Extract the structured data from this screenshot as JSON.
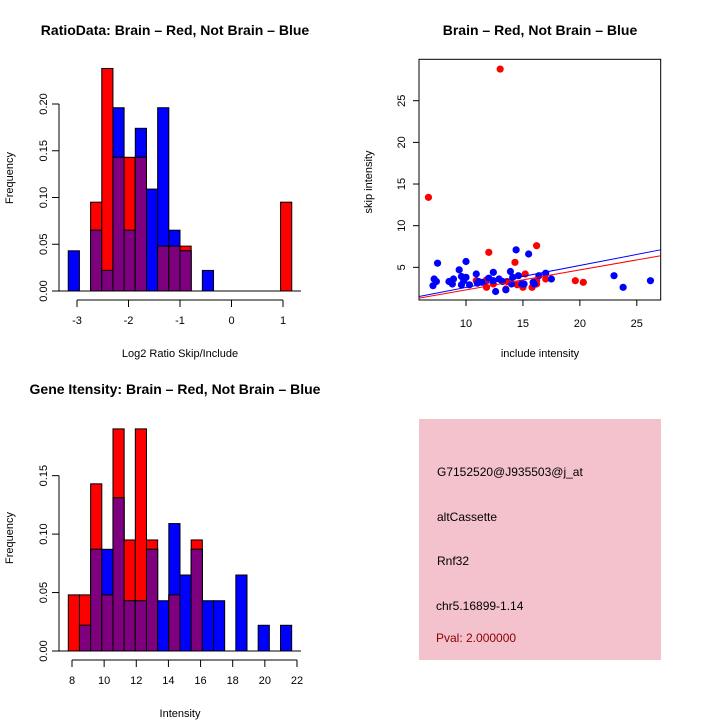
{
  "colors": {
    "brain": "#ff0000",
    "not_brain": "#0000ff",
    "overlap": "#7f007f",
    "panel_bg": "#f4c2cc",
    "pval": "#8b0000"
  },
  "chart_data": [
    {
      "type": "bar",
      "title": "RatioData: Brain – Red, Not Brain – Blue",
      "xlabel": "Log2 Ratio Skip/Include",
      "ylabel": "Frequency",
      "bin_start": -3.17,
      "bin_width": 0.217,
      "xlim": [
        -3,
        1
      ],
      "ylim": [
        0,
        0.24
      ],
      "xticks": [
        "-3",
        "-2",
        "-1",
        "0",
        "1"
      ],
      "xtick_values": [
        -3,
        -2,
        -1,
        0,
        1
      ],
      "yticks": [
        "0.00",
        "0.05",
        "0.10",
        "0.15",
        "0.20"
      ],
      "ytick_values": [
        0,
        0.05,
        0.1,
        0.15,
        0.2
      ],
      "series": [
        {
          "name": "Not Brain",
          "color": "blue",
          "values": [
            0.043,
            0,
            0.065,
            0.022,
            0.196,
            0.065,
            0.174,
            0.109,
            0.196,
            0.065,
            0.043,
            0,
            0.022,
            0,
            0,
            0,
            0,
            0,
            0,
            0
          ]
        },
        {
          "name": "Brain",
          "color": "red",
          "values": [
            0,
            0,
            0.095,
            0.238,
            0.143,
            0.143,
            0.143,
            0,
            0.048,
            0.048,
            0.048,
            0,
            0,
            0,
            0,
            0,
            0,
            0,
            0,
            0.095
          ]
        }
      ]
    },
    {
      "type": "scatter",
      "title": "Brain – Red, Not Brain – Blue",
      "xlabel": "include intensity",
      "ylabel": "skip intensity",
      "xlim": [
        5.87,
        27.1
      ],
      "ylim": [
        1.08,
        29.97
      ],
      "xticks": [
        "10",
        "15",
        "20",
        "25"
      ],
      "xtick_values": [
        10,
        15,
        20,
        25
      ],
      "yticks": [
        "5",
        "10",
        "15",
        "20",
        "25"
      ],
      "ytick_values": [
        5,
        10,
        15,
        20,
        25
      ],
      "series": [
        {
          "name": "Brain",
          "color": "red",
          "fit": {
            "slope": 0.24,
            "intercept": -0.11
          },
          "points": [
            [
              6.7,
              13.4
            ],
            [
              13,
              28.8
            ],
            [
              12,
              6.8
            ],
            [
              16.2,
              7.6
            ],
            [
              14.3,
              5.6
            ],
            [
              15.2,
              4.2
            ],
            [
              10.9,
              3.4
            ],
            [
              11.8,
              2.6
            ],
            [
              12.4,
              3.0
            ],
            [
              13.5,
              2.4
            ],
            [
              14.5,
              2.9
            ],
            [
              15,
              2.6
            ],
            [
              15.8,
              2.6
            ],
            [
              16.2,
              3.0
            ],
            [
              17,
              3.6
            ],
            [
              19.6,
              3.4
            ],
            [
              20.3,
              3.2
            ],
            [
              11.8,
              3.5
            ],
            [
              13.6,
              3.3
            ],
            [
              16.2,
              3.4
            ],
            [
              14.9,
              3.1
            ]
          ]
        },
        {
          "name": "Not Brain",
          "color": "blue",
          "fit": {
            "slope": 0.264,
            "intercept": -0.05
          },
          "points": [
            [
              7.1,
              2.8
            ],
            [
              7.2,
              3.6
            ],
            [
              7.4,
              3.3
            ],
            [
              7.5,
              5.5
            ],
            [
              8.5,
              3.3
            ],
            [
              8.8,
              3.0
            ],
            [
              8.9,
              3.6
            ],
            [
              9.4,
              4.7
            ],
            [
              9.6,
              2.9
            ],
            [
              9.6,
              3.9
            ],
            [
              9.8,
              3.4
            ],
            [
              10,
              5.7
            ],
            [
              10,
              3.8
            ],
            [
              10.3,
              2.9
            ],
            [
              10.9,
              4.2
            ],
            [
              11.1,
              3.3
            ],
            [
              11.4,
              3.2
            ],
            [
              12,
              3.7
            ],
            [
              12.4,
              4.4
            ],
            [
              12.4,
              3.4
            ],
            [
              12.6,
              2.1
            ],
            [
              12.9,
              3.6
            ],
            [
              13.5,
              2.3
            ],
            [
              13.9,
              4.5
            ],
            [
              14,
              3.0
            ],
            [
              14.1,
              3.8
            ],
            [
              14.4,
              7.1
            ],
            [
              14.6,
              4.0
            ],
            [
              14.9,
              3.0
            ],
            [
              15.5,
              6.6
            ],
            [
              15.9,
              3.2
            ],
            [
              16,
              3.0
            ],
            [
              16.4,
              4.0
            ],
            [
              17,
              4.3
            ],
            [
              17.5,
              3.6
            ],
            [
              23,
              4.0
            ],
            [
              23.8,
              2.6
            ],
            [
              26.2,
              3.4
            ],
            [
              13.2,
              3.3
            ],
            [
              11,
              3.1
            ],
            [
              15.1,
              3.0
            ]
          ]
        }
      ]
    },
    {
      "type": "bar",
      "title": "Gene Itensity: Brain – Red, Not Brain – Blue",
      "xlabel": "Intensity",
      "ylabel": "Frequency",
      "bin_start": 7.77,
      "bin_width": 0.695,
      "xlim": [
        8,
        22
      ],
      "ylim": [
        0,
        0.19
      ],
      "xticks": [
        "8",
        "10",
        "12",
        "14",
        "16",
        "18",
        "20",
        "22"
      ],
      "xtick_values": [
        8,
        10,
        12,
        14,
        16,
        18,
        20,
        22
      ],
      "yticks": [
        "0.00",
        "0.05",
        "0.10",
        "0.15"
      ],
      "ytick_values": [
        0,
        0.05,
        0.1,
        0.15
      ],
      "series": [
        {
          "name": "Not Brain",
          "color": "blue",
          "values": [
            0,
            0.022,
            0.087,
            0.087,
            0.131,
            0.043,
            0.043,
            0.087,
            0.043,
            0.109,
            0.065,
            0.087,
            0.043,
            0.043,
            0,
            0.065,
            0,
            0.022,
            0,
            0.022
          ]
        },
        {
          "name": "Brain",
          "color": "red",
          "values": [
            0.048,
            0.048,
            0.143,
            0.048,
            0.19,
            0.095,
            0.19,
            0.095,
            0,
            0.048,
            0,
            0.095,
            0,
            0,
            0,
            0,
            0,
            0,
            0,
            0
          ]
        }
      ]
    }
  ],
  "info_panel": {
    "probe_id": "G7152520@J935503@j_at",
    "event_type": "altCassette",
    "gene": "Rnf32",
    "location": "chr5.16899-1.14",
    "pval": "Pval: 2.000000"
  }
}
